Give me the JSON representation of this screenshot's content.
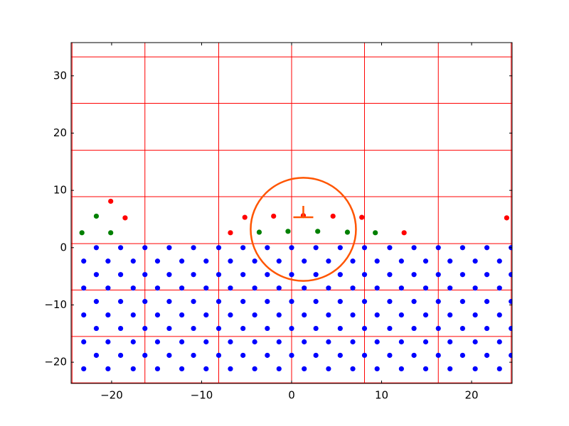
{
  "chart_data": {
    "type": "scatter",
    "xlim": [
      -24.5,
      24.5
    ],
    "ylim": [
      -23.7,
      35.8
    ],
    "xticks": [
      {
        "value": -20,
        "label": "−20"
      },
      {
        "value": -10,
        "label": "−10"
      },
      0,
      10,
      20
    ],
    "yticks": [
      {
        "value": -20,
        "label": "−20"
      },
      {
        "value": -10,
        "label": "−10"
      },
      0,
      10,
      20,
      30
    ],
    "vlines": [
      -24.4,
      -16.3,
      -8.1,
      0,
      8.1,
      16.3,
      24.4
    ],
    "hlines": [
      -23.6,
      -15.5,
      -7.4,
      0.7,
      8.9,
      17,
      25.2,
      33.3
    ],
    "line_color": "#ff0000",
    "series": [
      {
        "color": "#0000ff",
        "x": [
          -21.7,
          -19,
          -16.3,
          -13.6,
          -10.9,
          -8.1,
          -5.4,
          -2.7,
          0,
          2.7,
          5.4,
          8.1,
          10.9,
          13.6,
          16.3,
          19,
          21.7,
          24.4,
          -23.1,
          -20.4,
          -17.6,
          -14.9,
          -12.2,
          -9.5,
          -6.8,
          -4.1,
          -1.4,
          1.4,
          4.1,
          6.8,
          9.5,
          12.2,
          14.9,
          17.6,
          20.4,
          23.1,
          -21.7,
          -19,
          -16.3,
          -13.6,
          -10.9,
          -8.1,
          -5.4,
          -2.7,
          0,
          2.7,
          5.4,
          8.1,
          10.9,
          13.6,
          16.3,
          19,
          21.7,
          24.4,
          -23.1,
          -20.4,
          -17.6,
          -14.9,
          -12.2,
          -9.5,
          -6.8,
          -4.1,
          -1.4,
          1.4,
          4.1,
          6.8,
          9.5,
          12.2,
          14.9,
          17.6,
          20.4,
          23.1,
          -21.7,
          -19,
          -16.3,
          -13.6,
          -10.9,
          -8.1,
          -5.4,
          -2.7,
          0,
          2.7,
          5.4,
          8.1,
          10.9,
          13.6,
          16.3,
          19,
          21.7,
          24.4,
          -23.1,
          -20.4,
          -17.6,
          -14.9,
          -12.2,
          -9.5,
          -6.8,
          -4.1,
          -1.4,
          1.4,
          4.1,
          6.8,
          9.5,
          12.2,
          14.9,
          17.6,
          20.4,
          23.1,
          -21.7,
          -19,
          -16.3,
          -13.6,
          -10.9,
          -8.1,
          -5.4,
          -2.7,
          0,
          2.7,
          5.4,
          8.1,
          10.9,
          13.6,
          16.3,
          19,
          21.7,
          24.4,
          -23.1,
          -20.4,
          -17.6,
          -14.9,
          -12.2,
          -9.5,
          -6.8,
          -4.1,
          -1.4,
          1.4,
          4.1,
          6.8,
          9.5,
          12.2,
          14.9,
          17.6,
          20.4,
          23.1,
          -21.7,
          -19,
          -16.3,
          -13.6,
          -10.9,
          -8.1,
          -5.4,
          -2.7,
          0,
          2.7,
          5.4,
          8.1,
          10.9,
          13.6,
          16.3,
          19,
          21.7,
          24.4,
          -23.1,
          -20.4,
          -17.6,
          -14.9,
          -12.2,
          -9.5,
          -6.8,
          -4.1,
          -1.4,
          1.4,
          4.1,
          6.8,
          9.5,
          12.2,
          14.9,
          17.6,
          20.4,
          23.1
        ],
        "values": [
          0,
          0,
          0,
          0,
          0,
          0,
          0,
          0,
          0,
          0,
          0,
          0,
          0,
          0,
          0,
          0,
          0,
          0,
          -2.35,
          -2.35,
          -2.35,
          -2.35,
          -2.35,
          -2.35,
          -2.35,
          -2.35,
          -2.35,
          -2.35,
          -2.35,
          -2.35,
          -2.35,
          -2.35,
          -2.35,
          -2.35,
          -2.35,
          -2.35,
          -4.7,
          -4.7,
          -4.7,
          -4.7,
          -4.7,
          -4.7,
          -4.7,
          -4.7,
          -4.7,
          -4.7,
          -4.7,
          -4.7,
          -4.7,
          -4.7,
          -4.7,
          -4.7,
          -4.7,
          -4.7,
          -7.05,
          -7.05,
          -7.05,
          -7.05,
          -7.05,
          -7.05,
          -7.05,
          -7.05,
          -7.05,
          -7.05,
          -7.05,
          -7.05,
          -7.05,
          -7.05,
          -7.05,
          -7.05,
          -7.05,
          -7.05,
          -9.4,
          -9.4,
          -9.4,
          -9.4,
          -9.4,
          -9.4,
          -9.4,
          -9.4,
          -9.4,
          -9.4,
          -9.4,
          -9.4,
          -9.4,
          -9.4,
          -9.4,
          -9.4,
          -9.4,
          -9.4,
          -11.75,
          -11.75,
          -11.75,
          -11.75,
          -11.75,
          -11.75,
          -11.75,
          -11.75,
          -11.75,
          -11.75,
          -11.75,
          -11.75,
          -11.75,
          -11.75,
          -11.75,
          -11.75,
          -11.75,
          -11.75,
          -14.1,
          -14.1,
          -14.1,
          -14.1,
          -14.1,
          -14.1,
          -14.1,
          -14.1,
          -14.1,
          -14.1,
          -14.1,
          -14.1,
          -14.1,
          -14.1,
          -14.1,
          -14.1,
          -14.1,
          -14.1,
          -16.45,
          -16.45,
          -16.45,
          -16.45,
          -16.45,
          -16.45,
          -16.45,
          -16.45,
          -16.45,
          -16.45,
          -16.45,
          -16.45,
          -16.45,
          -16.45,
          -16.45,
          -16.45,
          -16.45,
          -16.45,
          -18.8,
          -18.8,
          -18.8,
          -18.8,
          -18.8,
          -18.8,
          -18.8,
          -18.8,
          -18.8,
          -18.8,
          -18.8,
          -18.8,
          -18.8,
          -18.8,
          -18.8,
          -18.8,
          -18.8,
          -18.8,
          -21.15,
          -21.15,
          -21.15,
          -21.15,
          -21.15,
          -21.15,
          -21.15,
          -21.15,
          -21.15,
          -21.15,
          -21.15,
          -21.15,
          -21.15,
          -21.15,
          -21.15,
          -21.15,
          -21.15,
          -21.15
        ]
      },
      {
        "color": "#008000",
        "x": [
          -23.3,
          -21.7,
          -20.1,
          -3.6,
          -0.4,
          2.9,
          6.2,
          9.3
        ],
        "values": [
          2.6,
          5.5,
          2.6,
          2.7,
          2.85,
          2.85,
          2.7,
          2.6
        ]
      },
      {
        "color": "#ff0000",
        "x": [
          -20.1,
          -18.5,
          -6.8,
          -5.2,
          -2.0,
          1.3,
          4.6,
          7.8,
          12.5,
          23.9
        ],
        "values": [
          8.1,
          5.2,
          2.6,
          5.3,
          5.5,
          5.6,
          5.5,
          5.3,
          2.6,
          5.2
        ]
      }
    ],
    "circle": {
      "x": 1.3,
      "y": 3.2,
      "rx": 5.85,
      "ry": 9.0,
      "color": "#ff5500"
    },
    "marker": {
      "x": 1.3,
      "y": 5.3,
      "color": "#ff5500"
    }
  }
}
